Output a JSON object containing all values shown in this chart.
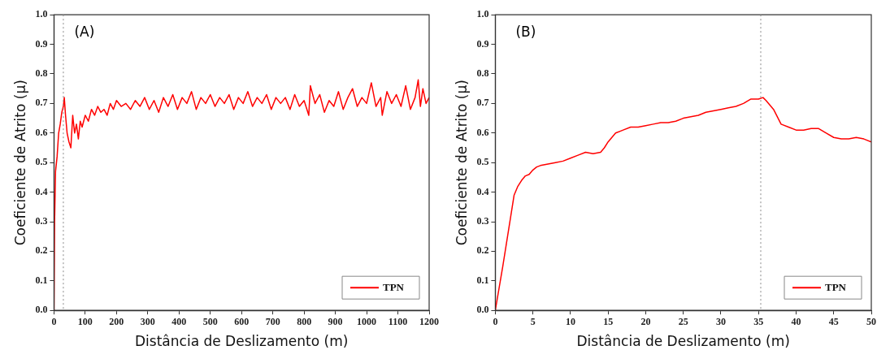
{
  "chart_data": [
    {
      "type": "line",
      "xlabel": "Distância de Deslizamento (m)",
      "ylabel": "Coeficiente de Atrito (μ)",
      "annotations": [
        "(A)"
      ],
      "legend": "bottom right",
      "grid": false,
      "xlim": [
        0,
        1200
      ],
      "xticks": [
        0,
        100,
        200,
        300,
        400,
        500,
        600,
        700,
        800,
        900,
        1000,
        1100,
        1200
      ],
      "ylim": [
        0,
        1
      ],
      "yticks": [
        {
          "value": 0,
          "label": "0.0"
        },
        {
          "value": 0.1,
          "label": "0.1"
        },
        {
          "value": 0.2,
          "label": "0.2"
        },
        {
          "value": 0.3,
          "label": "0.3"
        },
        {
          "value": 0.4,
          "label": "0.4"
        },
        {
          "value": 0.5,
          "label": "0.5"
        },
        {
          "value": 0.6,
          "label": "0.6"
        },
        {
          "value": 0.7,
          "label": "0.7"
        },
        {
          "value": 0.8,
          "label": "0.8"
        },
        {
          "value": 0.9,
          "label": "0.9"
        },
        {
          "value": 1,
          "label": "1.0"
        }
      ],
      "ref_lines": [
        {
          "axis": "x",
          "value": 30,
          "label": null,
          "color": "#888888",
          "line_style": "dotted"
        }
      ],
      "series": [
        {
          "name": "TPN",
          "color": "#ff0000",
          "x": [
            0,
            2,
            5,
            10,
            15,
            20,
            25,
            30,
            33,
            37,
            42,
            48,
            54,
            60,
            66,
            72,
            78,
            84,
            90,
            100,
            110,
            120,
            130,
            140,
            150,
            160,
            170,
            180,
            190,
            200,
            215,
            230,
            245,
            260,
            275,
            290,
            305,
            320,
            335,
            350,
            365,
            380,
            395,
            410,
            425,
            440,
            455,
            470,
            485,
            500,
            515,
            530,
            545,
            560,
            575,
            590,
            605,
            620,
            635,
            650,
            665,
            680,
            695,
            710,
            725,
            740,
            755,
            770,
            785,
            800,
            815,
            820,
            835,
            850,
            865,
            880,
            895,
            910,
            925,
            940,
            955,
            970,
            985,
            1000,
            1015,
            1030,
            1045,
            1050,
            1065,
            1080,
            1095,
            1110,
            1125,
            1140,
            1155,
            1165,
            1172,
            1180,
            1190,
            1200
          ],
          "values": [
            0.0,
            0.3,
            0.47,
            0.52,
            0.6,
            0.63,
            0.67,
            0.69,
            0.72,
            0.66,
            0.6,
            0.57,
            0.55,
            0.66,
            0.6,
            0.63,
            0.58,
            0.64,
            0.62,
            0.66,
            0.64,
            0.68,
            0.66,
            0.69,
            0.67,
            0.68,
            0.66,
            0.7,
            0.68,
            0.71,
            0.69,
            0.7,
            0.68,
            0.71,
            0.69,
            0.72,
            0.68,
            0.71,
            0.67,
            0.72,
            0.69,
            0.73,
            0.68,
            0.72,
            0.7,
            0.74,
            0.68,
            0.72,
            0.7,
            0.73,
            0.69,
            0.72,
            0.7,
            0.73,
            0.68,
            0.72,
            0.7,
            0.74,
            0.69,
            0.72,
            0.7,
            0.73,
            0.68,
            0.72,
            0.7,
            0.72,
            0.68,
            0.73,
            0.69,
            0.71,
            0.66,
            0.76,
            0.7,
            0.73,
            0.67,
            0.71,
            0.69,
            0.74,
            0.68,
            0.72,
            0.75,
            0.69,
            0.72,
            0.7,
            0.77,
            0.69,
            0.72,
            0.66,
            0.74,
            0.7,
            0.73,
            0.69,
            0.76,
            0.68,
            0.72,
            0.78,
            0.69,
            0.75,
            0.7,
            0.72
          ]
        }
      ]
    },
    {
      "type": "line",
      "xlabel": "Distância de Deslizamento (m)",
      "ylabel": "Coeficiente de Atrito (μ)",
      "annotations": [
        "(B)"
      ],
      "legend": "bottom right",
      "grid": false,
      "xlim": [
        0,
        50
      ],
      "xticks": [
        0,
        5,
        10,
        15,
        20,
        25,
        30,
        35,
        40,
        45,
        50
      ],
      "ylim": [
        0,
        1
      ],
      "yticks": [
        {
          "value": 0,
          "label": "0.0"
        },
        {
          "value": 0.1,
          "label": "0.1"
        },
        {
          "value": 0.2,
          "label": "0.2"
        },
        {
          "value": 0.3,
          "label": "0.3"
        },
        {
          "value": 0.4,
          "label": "0.4"
        },
        {
          "value": 0.5,
          "label": "0.5"
        },
        {
          "value": 0.6,
          "label": "0.6"
        },
        {
          "value": 0.7,
          "label": "0.7"
        },
        {
          "value": 0.8,
          "label": "0.8"
        },
        {
          "value": 0.9,
          "label": "0.9"
        },
        {
          "value": 1,
          "label": "1.0"
        }
      ],
      "ref_lines": [
        {
          "axis": "x",
          "value": 35.3,
          "label": null,
          "color": "#888888",
          "line_style": "dotted"
        }
      ],
      "series": [
        {
          "name": "TPN",
          "color": "#ff0000",
          "x": [
            0,
            1,
            2,
            2.5,
            3,
            3.5,
            4,
            4.5,
            5,
            5.5,
            6,
            7,
            8,
            9,
            10,
            11,
            12,
            13,
            14,
            14.5,
            15,
            15.5,
            16,
            17,
            18,
            19,
            20,
            21,
            22,
            23,
            24,
            25,
            26,
            27,
            28,
            29,
            30,
            31,
            32,
            33,
            34,
            35,
            35.6,
            36,
            37,
            38,
            39,
            40,
            41,
            42,
            43,
            44,
            45,
            46,
            47,
            48,
            49,
            50
          ],
          "values": [
            0.0,
            0.15,
            0.31,
            0.39,
            0.42,
            0.44,
            0.455,
            0.46,
            0.475,
            0.485,
            0.49,
            0.495,
            0.5,
            0.505,
            0.515,
            0.525,
            0.535,
            0.53,
            0.535,
            0.55,
            0.57,
            0.585,
            0.6,
            0.61,
            0.62,
            0.62,
            0.625,
            0.63,
            0.635,
            0.635,
            0.64,
            0.65,
            0.655,
            0.66,
            0.67,
            0.675,
            0.68,
            0.685,
            0.69,
            0.7,
            0.715,
            0.715,
            0.72,
            0.71,
            0.68,
            0.63,
            0.62,
            0.61,
            0.61,
            0.615,
            0.615,
            0.6,
            0.585,
            0.58,
            0.58,
            0.585,
            0.58,
            0.57
          ]
        }
      ]
    }
  ]
}
